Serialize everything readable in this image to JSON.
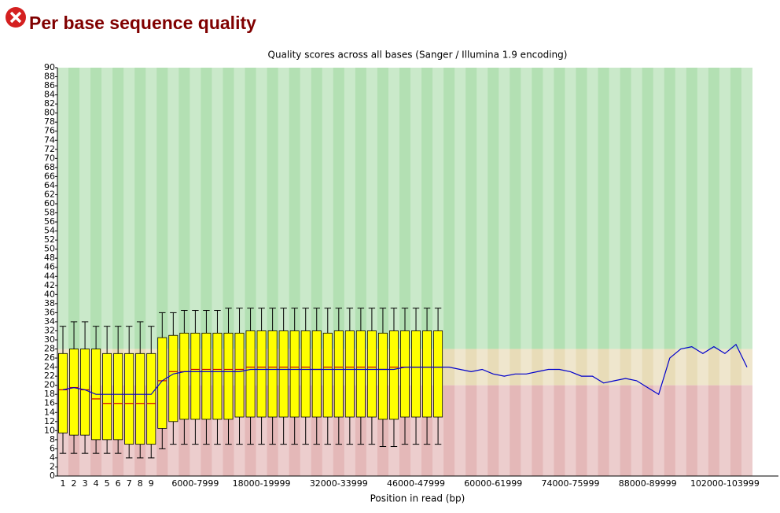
{
  "heading": "Per base sequence quality",
  "chart_data": {
    "type": "box",
    "title": "Quality scores across all bases (Sanger / Illumina 1.9 encoding)",
    "x_label": "Position in read (bp)",
    "categories": [
      "1",
      "2",
      "3",
      "4",
      "5",
      "6",
      "7",
      "8",
      "9",
      null,
      null,
      null,
      "6000-7999",
      null,
      null,
      null,
      null,
      null,
      "18000-19999",
      null,
      null,
      null,
      null,
      null,
      null,
      "32000-33999",
      null,
      null,
      null,
      null,
      null,
      null,
      "46000-47999",
      null,
      null,
      null,
      null,
      null,
      null,
      "60000-61999",
      null,
      null,
      null,
      null,
      null,
      null,
      "74000-75999",
      null,
      null,
      null,
      null,
      null,
      null,
      "88000-89999",
      null,
      null,
      null,
      null,
      null,
      null,
      "102000-103999",
      null,
      null
    ],
    "q3": [
      27,
      28,
      28,
      28,
      27,
      27,
      27,
      27,
      27,
      30.5,
      31,
      31.5,
      31.5,
      31.5,
      31.5,
      31.5,
      31.5,
      32,
      32,
      32,
      32,
      32,
      32,
      32,
      31.5,
      32,
      32,
      32,
      32,
      31.5,
      32,
      32,
      32,
      32,
      32,
      null,
      null,
      null,
      null,
      null,
      null,
      null,
      null,
      null,
      null,
      null,
      null,
      null,
      null,
      null,
      null,
      null,
      null,
      null,
      null,
      null,
      null,
      null,
      null,
      null,
      null,
      null,
      null
    ],
    "q1": [
      9.5,
      9,
      9,
      8,
      8,
      8,
      7,
      7,
      7,
      10.5,
      12,
      12.5,
      12.5,
      12.5,
      12.5,
      12.5,
      13,
      13,
      13,
      13,
      13,
      13,
      13,
      13,
      13,
      13,
      13,
      13,
      13,
      12.5,
      12.5,
      13,
      13,
      13,
      13,
      null,
      null,
      null,
      null,
      null,
      null,
      null,
      null,
      null,
      null,
      null,
      null,
      null,
      null,
      null,
      null,
      null,
      null,
      null,
      null,
      null,
      null,
      null,
      null,
      null,
      null,
      null,
      null
    ],
    "whishi": [
      33,
      34,
      34,
      33,
      33,
      33,
      33,
      34,
      33,
      36,
      36,
      36.5,
      36.5,
      36.5,
      36.5,
      37,
      37,
      37,
      37,
      37,
      37,
      37,
      37,
      37,
      37,
      37,
      37,
      37,
      37,
      37,
      37,
      37,
      37,
      37,
      37,
      null,
      null,
      null,
      null,
      null,
      null,
      null,
      null,
      null,
      null,
      null,
      null,
      null,
      null,
      null,
      null,
      null,
      null,
      null,
      null,
      null,
      null,
      null,
      null,
      null,
      null,
      null,
      null
    ],
    "whislo": [
      5,
      5,
      5,
      5,
      5,
      5,
      4,
      4,
      4,
      6,
      7,
      7,
      7,
      7,
      7,
      7,
      7,
      7,
      7,
      7,
      7,
      7,
      7,
      7,
      7,
      7,
      7,
      7,
      7,
      6.5,
      6.5,
      7,
      7,
      7,
      7,
      null,
      null,
      null,
      null,
      null,
      null,
      null,
      null,
      null,
      null,
      null,
      null,
      null,
      null,
      null,
      null,
      null,
      null,
      null,
      null,
      null,
      null,
      null,
      null,
      null,
      null,
      null,
      null
    ],
    "median": [
      19,
      19.5,
      19,
      17,
      16,
      16,
      16,
      16,
      16,
      21,
      23,
      23,
      23.5,
      23.5,
      23.5,
      23.5,
      23.5,
      24,
      24,
      24,
      24,
      24,
      24,
      23.5,
      24,
      24,
      24,
      24,
      24,
      23.5,
      24,
      24,
      24,
      24,
      24,
      null,
      null,
      null,
      null,
      null,
      null,
      null,
      null,
      null,
      null,
      null,
      null,
      null,
      null,
      null,
      null,
      null,
      null,
      null,
      null,
      null,
      null,
      null,
      null,
      null,
      null,
      null,
      null
    ],
    "mean": [
      19,
      19.5,
      19,
      18,
      18,
      18,
      18,
      18,
      18,
      21,
      22.5,
      23,
      23,
      23,
      23,
      23,
      23,
      23.5,
      23.5,
      23.5,
      23.5,
      23.5,
      23.5,
      23.5,
      23.5,
      23.5,
      23.5,
      23.5,
      23.5,
      23.5,
      23.5,
      24,
      24,
      24,
      24,
      24,
      23.5,
      23,
      23.5,
      22.5,
      22,
      22.5,
      22.5,
      23,
      23.5,
      23.5,
      23,
      22,
      22,
      20.5,
      21,
      21.5,
      21,
      19.5,
      18,
      26,
      28,
      28.5,
      27,
      28.5,
      27,
      29,
      24
    ],
    "box_color": "#ffff00",
    "median_color": "#cc0000",
    "mean_color": "#0000cc",
    "bands": [
      {
        "from": 28,
        "to": 90,
        "color": "#b3e0b3"
      },
      {
        "from": 20,
        "to": 28,
        "color": "#e8dcb8"
      },
      {
        "from": 0,
        "to": 20,
        "color": "#e4b8b8"
      }
    ],
    "ylim": [
      0,
      90
    ],
    "yticks": [
      0,
      2,
      4,
      6,
      8,
      10,
      12,
      14,
      16,
      18,
      20,
      22,
      24,
      26,
      28,
      30,
      32,
      34,
      36,
      38,
      40,
      42,
      44,
      46,
      48,
      50,
      52,
      54,
      56,
      58,
      60,
      62,
      64,
      66,
      68,
      70,
      72,
      74,
      76,
      78,
      80,
      82,
      84,
      86,
      88,
      90
    ]
  }
}
